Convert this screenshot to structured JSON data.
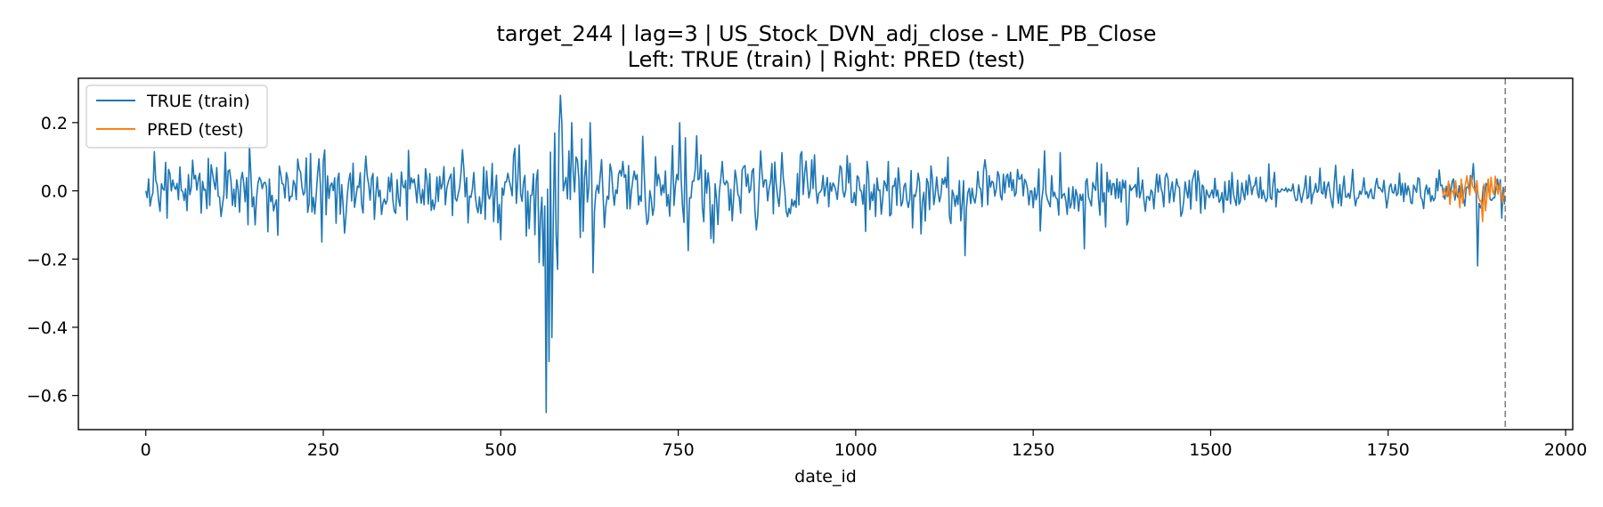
{
  "chart_data": {
    "type": "line",
    "title_line1": "target_244 | lag=3 | US_Stock_DVN_adj_close - LME_PB_Close",
    "title_line2": "Left: TRUE (train) | Right: PRED (test)",
    "xlabel": "date_id",
    "ylabel": "",
    "xlim": [
      -95,
      2010
    ],
    "ylim": [
      -0.7,
      0.33
    ],
    "xticks": [
      0,
      250,
      500,
      750,
      1000,
      1250,
      1500,
      1750,
      2000
    ],
    "yticks": [
      0.2,
      0.0,
      -0.2,
      -0.4,
      -0.6
    ],
    "grid": false,
    "legend_position": "top-left",
    "vline_x": 1915,
    "series": [
      {
        "name": "TRUE (train)",
        "color": "#1f77b4",
        "range": [
          0,
          1915
        ],
        "amplitude_profile": [
          [
            0,
            0.035
          ],
          [
            200,
            0.05
          ],
          [
            450,
            0.05
          ],
          [
            540,
            0.07
          ],
          [
            700,
            0.07
          ],
          [
            800,
            0.055
          ],
          [
            1000,
            0.045
          ],
          [
            1300,
            0.04
          ],
          [
            1500,
            0.035
          ],
          [
            1700,
            0.025
          ],
          [
            1915,
            0.025
          ]
        ],
        "anchors": [
          [
            0,
            0.0
          ],
          [
            3,
            -0.02
          ],
          [
            5,
            0.035
          ],
          [
            8,
            -0.02
          ],
          [
            15,
            0.03
          ],
          [
            20,
            -0.06
          ],
          [
            30,
            -0.08
          ],
          [
            48,
            0.07
          ],
          [
            88,
            0.095
          ],
          [
            172,
            -0.12
          ],
          [
            186,
            -0.13
          ],
          [
            249,
            -0.15
          ],
          [
            253,
            0.12
          ],
          [
            555,
            -0.21
          ],
          [
            560,
            -0.22
          ],
          [
            565,
            -0.65
          ],
          [
            569,
            -0.5
          ],
          [
            572,
            -0.43
          ],
          [
            576,
            0.17
          ],
          [
            581,
            -0.23
          ],
          [
            584,
            0.28
          ],
          [
            600,
            0.2
          ],
          [
            626,
            0.2
          ],
          [
            631,
            -0.24
          ],
          [
            700,
            0.16
          ],
          [
            752,
            0.2
          ],
          [
            1155,
            -0.19
          ],
          [
            1323,
            -0.17
          ],
          [
            1870,
            0.08
          ],
          [
            1877,
            -0.22
          ],
          [
            1881,
            -0.05
          ],
          [
            1915,
            -0.04
          ]
        ]
      },
      {
        "name": "PRED (test)",
        "color": "#ff7f0e",
        "range": [
          1827,
          1915
        ],
        "amplitude_profile": [
          [
            1827,
            0.02
          ],
          [
            1915,
            0.02
          ]
        ],
        "anchors": [
          [
            1827,
            -0.02
          ],
          [
            1838,
            -0.04
          ],
          [
            1845,
            0.03
          ],
          [
            1852,
            -0.05
          ],
          [
            1860,
            0.02
          ],
          [
            1868,
            0.04
          ],
          [
            1875,
            0.03
          ],
          [
            1880,
            -0.03
          ],
          [
            1883,
            -0.09
          ],
          [
            1886,
            0.02
          ],
          [
            1895,
            0.04
          ],
          [
            1905,
            -0.01
          ],
          [
            1910,
            0.0
          ],
          [
            1915,
            0.01
          ]
        ]
      }
    ]
  }
}
